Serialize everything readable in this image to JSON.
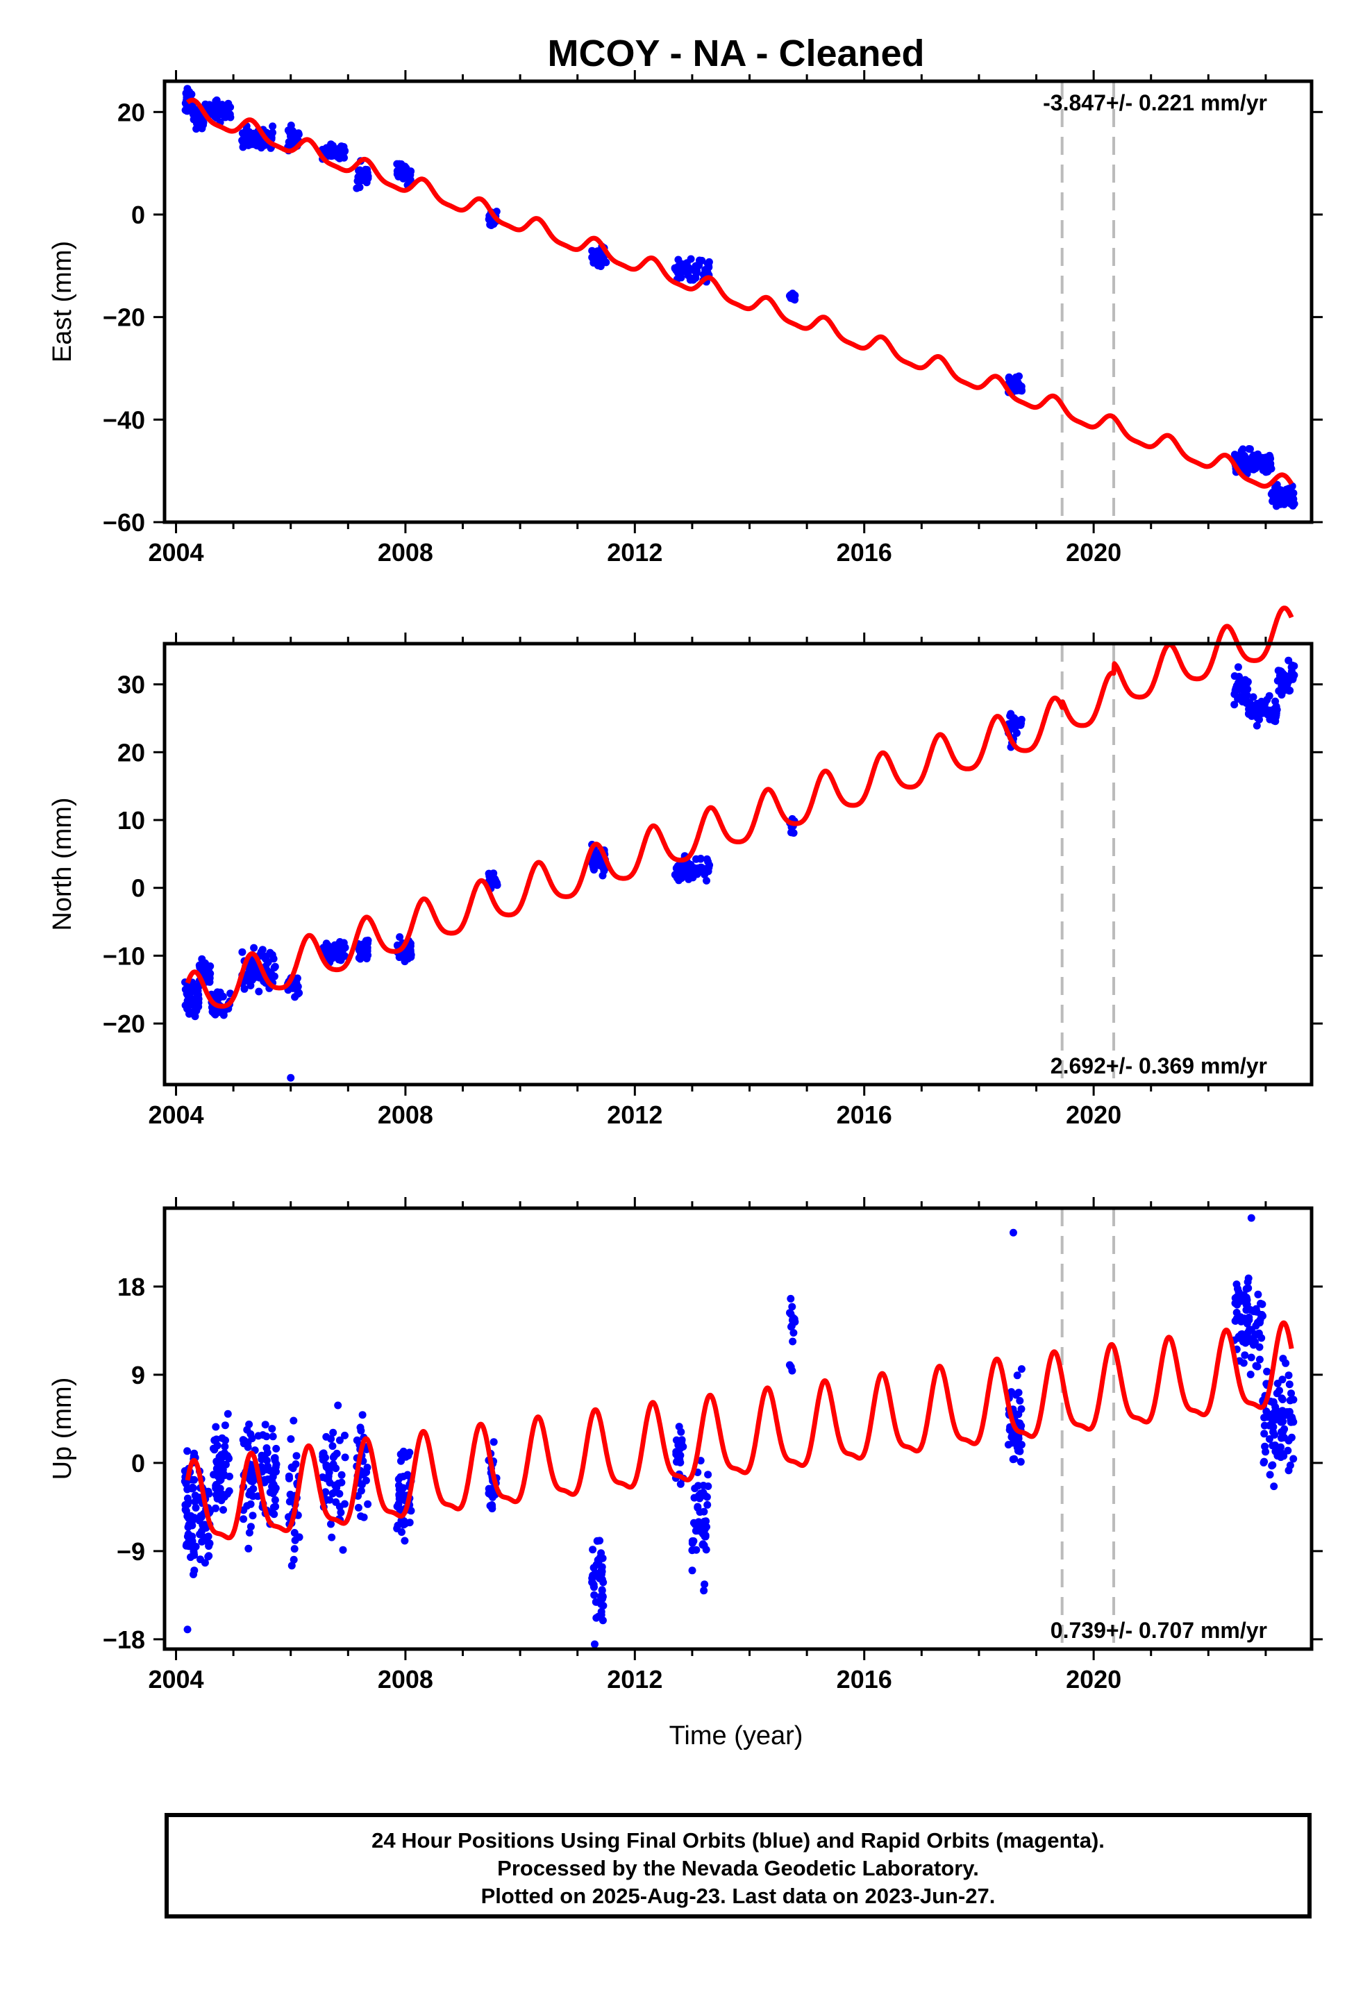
{
  "title": "MCOY  - NA - Cleaned",
  "xlabel": "Time (year)",
  "footer": {
    "line1": "24 Hour Positions Using Final Orbits (blue) and Rapid Orbits (magenta).",
    "line2": "Processed by the Nevada Geodetic Laboratory.",
    "line3": "Plotted on 2025-Aug-23. Last data on 2023-Jun-27."
  },
  "colors": {
    "data": "#0000ff",
    "model": "#ff0000",
    "breaks": "#bbbbbb",
    "frame": "#000000"
  },
  "chart_data": [
    {
      "type": "scatter",
      "panel": "east",
      "ylabel": "East (mm)",
      "xlim": [
        2003.8,
        2023.8
      ],
      "ylim": [
        -60,
        26
      ],
      "xticks": [
        2004,
        2008,
        2012,
        2016,
        2020
      ],
      "yticks": [
        -60,
        -40,
        -20,
        0,
        20
      ],
      "rate_text": "-3.847+/- 0.221 mm/yr",
      "rate_position": "top-right",
      "breaks": [
        2019.45,
        2020.35
      ],
      "model": {
        "t0": 2004.2,
        "offset": 20.5,
        "rate": -3.847,
        "annual_amp": 1.7,
        "semiannual_amp": 0.5,
        "steps": []
      },
      "segments": [
        {
          "start": 2004.15,
          "end": 2004.3,
          "center": 22.0,
          "spread": 1.6,
          "count": 45
        },
        {
          "start": 2004.3,
          "end": 2004.5,
          "center": 18.8,
          "spread": 1.3,
          "count": 35
        },
        {
          "start": 2004.5,
          "end": 2004.95,
          "center": 20.0,
          "spread": 1.4,
          "count": 60
        },
        {
          "start": 2005.15,
          "end": 2005.7,
          "center": 15.2,
          "spread": 1.4,
          "count": 70
        },
        {
          "start": 2005.95,
          "end": 2006.15,
          "center": 15.0,
          "spread": 1.6,
          "count": 25
        },
        {
          "start": 2006.55,
          "end": 2006.95,
          "center": 12.2,
          "spread": 1.3,
          "count": 45
        },
        {
          "start": 2007.15,
          "end": 2007.35,
          "center": 7.5,
          "spread": 1.6,
          "count": 25
        },
        {
          "start": 2007.85,
          "end": 2008.1,
          "center": 8.2,
          "spread": 1.4,
          "count": 40
        },
        {
          "start": 2009.45,
          "end": 2009.6,
          "center": -0.8,
          "spread": 1.1,
          "count": 25
        },
        {
          "start": 2011.25,
          "end": 2011.5,
          "center": -8.0,
          "spread": 1.4,
          "count": 35
        },
        {
          "start": 2012.7,
          "end": 2013.3,
          "center": -11.0,
          "spread": 1.5,
          "count": 60
        },
        {
          "start": 2014.7,
          "end": 2014.8,
          "center": -16.0,
          "spread": 0.7,
          "count": 12
        },
        {
          "start": 2018.5,
          "end": 2018.75,
          "center": -33.5,
          "spread": 1.2,
          "count": 35
        },
        {
          "start": 2022.45,
          "end": 2023.1,
          "center": -48.5,
          "spread": 1.6,
          "count": 110
        },
        {
          "start": 2023.1,
          "end": 2023.5,
          "center": -55.0,
          "spread": 1.5,
          "count": 60
        }
      ]
    },
    {
      "type": "scatter",
      "panel": "north",
      "ylabel": "North (mm)",
      "xlim": [
        2003.8,
        2023.8
      ],
      "ylim": [
        -29,
        36
      ],
      "xticks": [
        2004,
        2008,
        2012,
        2016,
        2020
      ],
      "yticks": [
        -20,
        -10,
        0,
        10,
        20,
        30
      ],
      "rate_text": "2.692+/- 0.369 mm/yr",
      "rate_position": "bottom-right",
      "breaks": [
        2019.45,
        2020.35
      ],
      "model": {
        "t0": 2004.2,
        "offset": -16.5,
        "rate": 2.692,
        "annual_amp": 3.2,
        "semiannual_amp": 0.6,
        "steps": [
          {
            "t": 2019.45,
            "dy": 1.0
          },
          {
            "t": 2020.35,
            "dy": 1.5
          }
        ]
      },
      "segments": [
        {
          "start": 2004.15,
          "end": 2004.4,
          "center": -16.5,
          "spread": 1.5,
          "count": 40
        },
        {
          "start": 2004.4,
          "end": 2004.6,
          "center": -12.5,
          "spread": 1.3,
          "count": 30
        },
        {
          "start": 2004.6,
          "end": 2004.95,
          "center": -17.0,
          "spread": 1.3,
          "count": 40
        },
        {
          "start": 2005.15,
          "end": 2005.75,
          "center": -12.0,
          "spread": 2.0,
          "count": 70
        },
        {
          "start": 2005.95,
          "end": 2006.15,
          "center": -14.0,
          "spread": 1.5,
          "count": 25
        },
        {
          "start": 2006.55,
          "end": 2006.95,
          "center": -9.5,
          "spread": 1.3,
          "count": 45
        },
        {
          "start": 2007.15,
          "end": 2007.35,
          "center": -9.0,
          "spread": 1.2,
          "count": 25
        },
        {
          "start": 2007.85,
          "end": 2008.1,
          "center": -9.0,
          "spread": 1.3,
          "count": 40
        },
        {
          "start": 2009.45,
          "end": 2009.6,
          "center": 1.0,
          "spread": 1.0,
          "count": 25
        },
        {
          "start": 2011.25,
          "end": 2011.5,
          "center": 4.0,
          "spread": 1.5,
          "count": 35
        },
        {
          "start": 2012.7,
          "end": 2013.3,
          "center": 3.0,
          "spread": 1.4,
          "count": 60
        },
        {
          "start": 2014.7,
          "end": 2014.8,
          "center": 9.0,
          "spread": 0.8,
          "count": 12
        },
        {
          "start": 2018.5,
          "end": 2018.75,
          "center": 23.5,
          "spread": 1.5,
          "count": 35
        },
        {
          "start": 2022.45,
          "end": 2022.7,
          "center": 29.5,
          "spread": 1.5,
          "count": 40
        },
        {
          "start": 2022.7,
          "end": 2023.2,
          "center": 26.0,
          "spread": 1.2,
          "count": 80
        },
        {
          "start": 2023.2,
          "end": 2023.5,
          "center": 31.0,
          "spread": 1.5,
          "count": 45
        }
      ],
      "outliers": [
        {
          "x": 2006.0,
          "y": -28.0
        }
      ]
    },
    {
      "type": "scatter",
      "panel": "up",
      "ylabel": "Up (mm)",
      "xlim": [
        2003.8,
        2023.8
      ],
      "ylim": [
        -19,
        26
      ],
      "xticks": [
        2004,
        2008,
        2012,
        2016,
        2020
      ],
      "yticks": [
        -18,
        -9,
        0,
        9,
        18
      ],
      "rate_text": "0.739+/- 0.707 mm/yr",
      "rate_position": "bottom-right",
      "breaks": [
        2019.45,
        2020.35
      ],
      "model": {
        "t0": 2004.2,
        "offset": -5.0,
        "rate": 0.739,
        "annual_amp": 4.0,
        "semiannual_amp": 1.2,
        "steps": []
      },
      "segments": [
        {
          "start": 2004.15,
          "end": 2004.35,
          "center": -4.0,
          "spread": 4.5,
          "count": 60
        },
        {
          "start": 2004.4,
          "end": 2004.6,
          "center": -5.5,
          "spread": 3.5,
          "count": 40
        },
        {
          "start": 2004.65,
          "end": 2004.95,
          "center": -1.0,
          "spread": 3.5,
          "count": 60
        },
        {
          "start": 2005.15,
          "end": 2005.75,
          "center": -1.5,
          "spread": 4.0,
          "count": 90
        },
        {
          "start": 2005.95,
          "end": 2006.15,
          "center": -4.5,
          "spread": 4.5,
          "count": 30
        },
        {
          "start": 2006.55,
          "end": 2006.95,
          "center": -2.0,
          "spread": 4.0,
          "count": 50
        },
        {
          "start": 2007.15,
          "end": 2007.35,
          "center": 0.0,
          "spread": 3.5,
          "count": 30
        },
        {
          "start": 2007.85,
          "end": 2008.1,
          "center": -3.0,
          "spread": 3.5,
          "count": 50
        },
        {
          "start": 2009.45,
          "end": 2009.6,
          "center": -2.0,
          "spread": 3.0,
          "count": 25
        },
        {
          "start": 2011.25,
          "end": 2011.45,
          "center": -12.0,
          "spread": 3.5,
          "count": 45
        },
        {
          "start": 2012.7,
          "end": 2012.85,
          "center": 1.0,
          "spread": 2.5,
          "count": 20
        },
        {
          "start": 2013.0,
          "end": 2013.3,
          "center": -6.0,
          "spread": 4.0,
          "count": 50
        },
        {
          "start": 2014.7,
          "end": 2014.8,
          "center": 14.0,
          "spread": 3.0,
          "count": 15
        },
        {
          "start": 2018.5,
          "end": 2018.75,
          "center": 4.0,
          "spread": 3.5,
          "count": 45
        },
        {
          "start": 2022.45,
          "end": 2022.95,
          "center": 14.5,
          "spread": 3.5,
          "count": 80
        },
        {
          "start": 2022.95,
          "end": 2023.5,
          "center": 4.0,
          "spread": 3.5,
          "count": 90
        }
      ],
      "outliers": [
        {
          "x": 2018.6,
          "y": 23.5
        },
        {
          "x": 2022.75,
          "y": 25.0
        },
        {
          "x": 2011.3,
          "y": -18.5
        },
        {
          "x": 2004.2,
          "y": -17.0
        }
      ]
    }
  ]
}
